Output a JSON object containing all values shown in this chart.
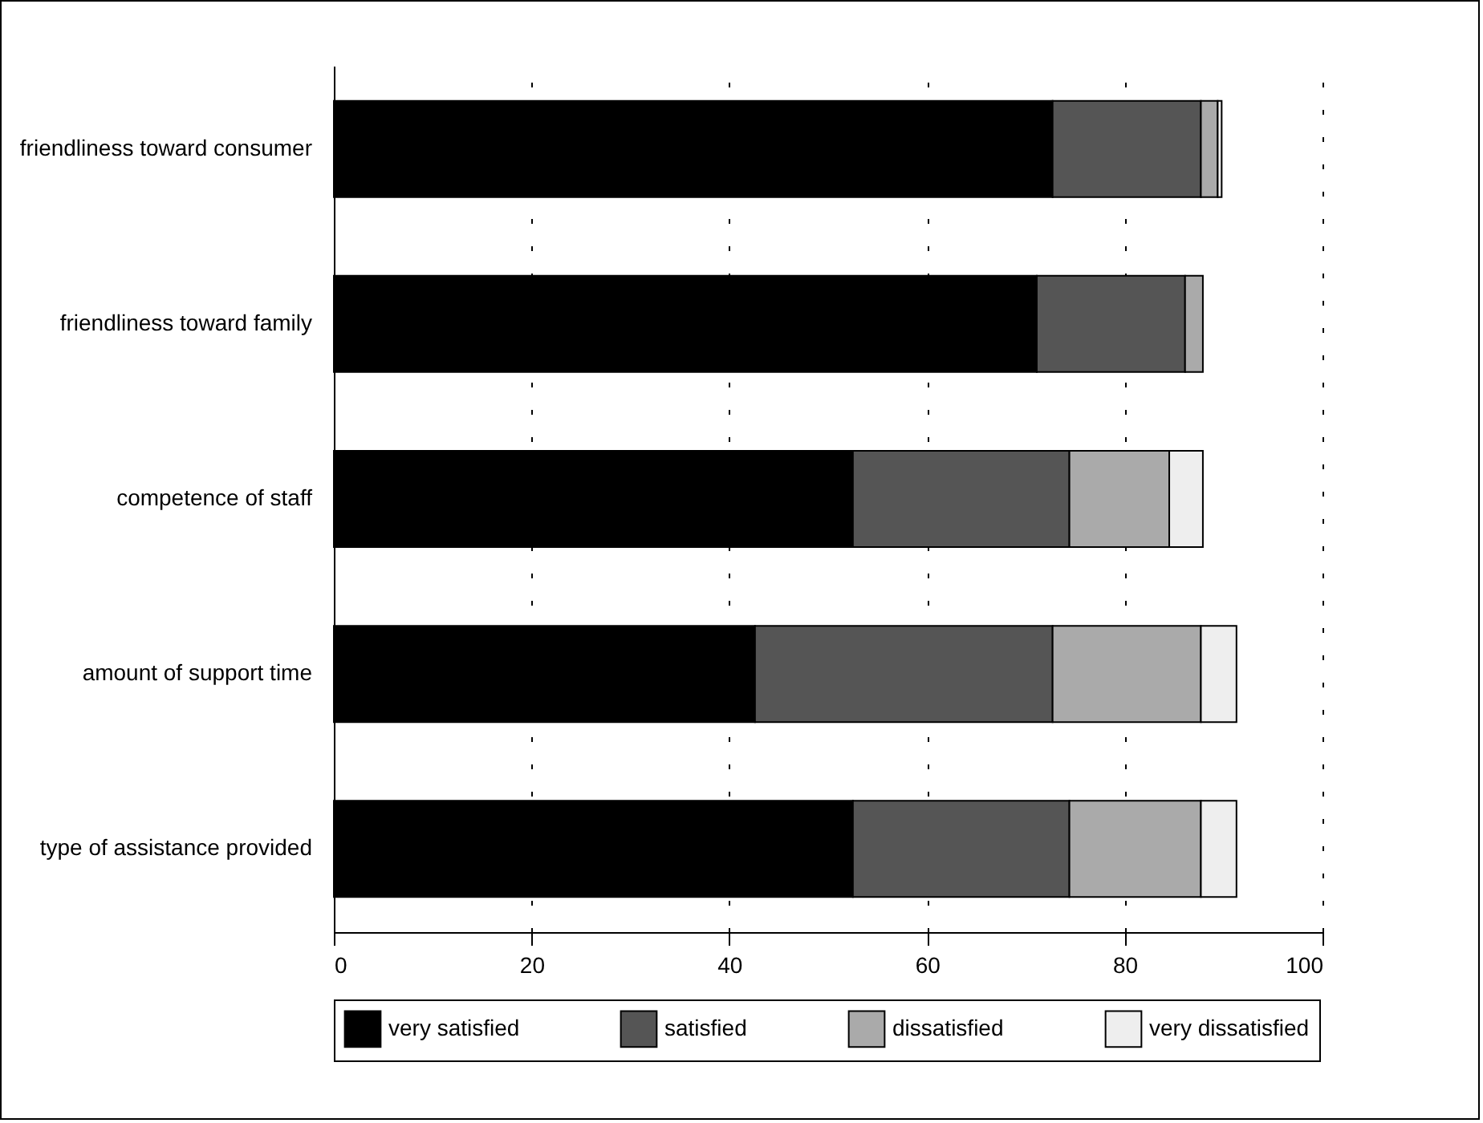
{
  "chart_data": {
    "type": "bar",
    "orientation": "horizontal",
    "stacked": true,
    "categories": [
      "friendliness toward consumer",
      "friendliness toward family",
      "competence of staff",
      "amount of support time",
      "type of assistance provided"
    ],
    "series": [
      {
        "name": "very satisfied",
        "color": "#000000",
        "values": [
          72.7,
          71.1,
          52.5,
          42.6,
          52.5
        ]
      },
      {
        "name": "satisfied",
        "color": "#555555",
        "values": [
          15,
          15,
          21.9,
          30.1,
          21.9
        ]
      },
      {
        "name": "dissatisfied",
        "color": "#aaaaaa",
        "values": [
          1.7,
          1.8,
          10.1,
          15,
          13.3
        ]
      },
      {
        "name": "very dissatisfied",
        "color": "#eeeeee",
        "values": [
          0.4,
          null,
          3.4,
          3.6,
          3.6
        ]
      }
    ],
    "xlim": [
      0,
      100
    ],
    "xticks": [
      0,
      20,
      40,
      60,
      80,
      100
    ],
    "grid": "x",
    "legend": "bottom"
  }
}
